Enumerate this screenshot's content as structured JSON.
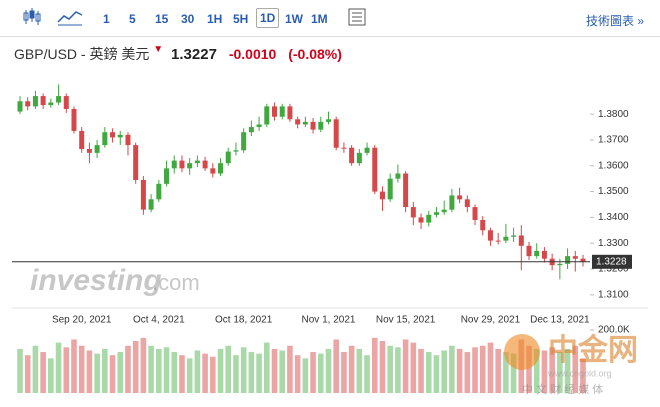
{
  "toolbar": {
    "intervals": [
      "1",
      "5",
      "15",
      "30",
      "1H",
      "5H",
      "1D",
      "1W",
      "1M"
    ],
    "active": "1D",
    "link": "技術圖表 »"
  },
  "header": {
    "symbol": "GBP/USD - 英鎊 美元",
    "price": "1.3227",
    "change": "-0.0010",
    "change_pct": "(-0.08%)"
  },
  "watermark": {
    "brand": "investing",
    "domain": ".com",
    "logo": "中金网",
    "site": "www.cngold.org",
    "slogan": "中 文 财 经 媒 体"
  },
  "chart_data": {
    "type": "candlestick",
    "categories": [
      null,
      null,
      null,
      null,
      null,
      null,
      null,
      null,
      "Sep 20, 2021",
      null,
      null,
      null,
      null,
      null,
      null,
      null,
      null,
      null,
      "Oct 4, 2021",
      null,
      null,
      null,
      null,
      null,
      null,
      null,
      null,
      null,
      null,
      "Oct 18, 2021",
      null,
      null,
      null,
      null,
      null,
      null,
      null,
      null,
      null,
      null,
      "Nov 1, 2021",
      null,
      null,
      null,
      null,
      null,
      null,
      null,
      null,
      null,
      "Nov 15, 2021",
      null,
      null,
      null,
      null,
      null,
      null,
      null,
      null,
      null,
      null,
      "Nov 29, 2021",
      null,
      null,
      null,
      null,
      null,
      null,
      null,
      null,
      "Dec 13, 2021",
      null,
      null,
      null
    ],
    "open": [
      1.381,
      1.385,
      1.383,
      1.387,
      1.3835,
      1.3845,
      1.387,
      1.382,
      1.3735,
      1.3665,
      1.365,
      1.368,
      1.373,
      1.371,
      1.372,
      1.368,
      1.3545,
      1.343,
      1.347,
      1.353,
      1.359,
      1.362,
      1.359,
      1.361,
      1.362,
      1.359,
      1.357,
      1.361,
      1.3655,
      1.366,
      1.373,
      1.375,
      1.376,
      1.383,
      1.379,
      1.383,
      1.378,
      1.376,
      1.377,
      1.374,
      1.377,
      1.378,
      1.367,
      1.367,
      1.361,
      1.365,
      1.367,
      1.35,
      1.347,
      1.355,
      1.357,
      1.344,
      1.34,
      1.338,
      1.341,
      1.342,
      1.343,
      1.3485,
      1.347,
      1.344,
      1.339,
      1.335,
      1.331,
      1.331,
      1.3325,
      1.333,
      1.329,
      1.325,
      1.327,
      1.324,
      1.3215,
      1.322,
      1.325,
      1.324
    ],
    "high": [
      1.387,
      1.3865,
      1.389,
      1.388,
      1.386,
      1.3915,
      1.388,
      1.383,
      1.375,
      1.369,
      1.37,
      1.375,
      1.3745,
      1.3735,
      1.373,
      1.369,
      1.356,
      1.349,
      1.3545,
      1.362,
      1.364,
      1.364,
      1.363,
      1.364,
      1.3635,
      1.361,
      1.363,
      1.367,
      1.369,
      1.3745,
      1.3775,
      1.379,
      1.384,
      1.3845,
      1.384,
      1.384,
      1.379,
      1.379,
      1.3785,
      1.379,
      1.381,
      1.379,
      1.369,
      1.368,
      1.3665,
      1.369,
      1.368,
      1.352,
      1.357,
      1.3605,
      1.358,
      1.346,
      1.3415,
      1.3425,
      1.344,
      1.3465,
      1.351,
      1.3515,
      1.3485,
      1.345,
      1.3405,
      1.336,
      1.334,
      1.3375,
      1.336,
      1.337,
      1.3305,
      1.33,
      1.3285,
      1.326,
      1.324,
      1.328,
      1.327,
      1.3255
    ],
    "low": [
      1.38,
      1.3815,
      1.382,
      1.382,
      1.3825,
      1.3835,
      1.3805,
      1.3725,
      1.365,
      1.361,
      1.363,
      1.367,
      1.369,
      1.368,
      1.364,
      1.353,
      1.341,
      1.342,
      1.346,
      1.352,
      1.357,
      1.3575,
      1.3565,
      1.3595,
      1.358,
      1.3555,
      1.356,
      1.36,
      1.364,
      1.365,
      1.3715,
      1.3735,
      1.375,
      1.3775,
      1.378,
      1.377,
      1.3745,
      1.375,
      1.3725,
      1.373,
      1.376,
      1.366,
      1.365,
      1.36,
      1.36,
      1.364,
      1.349,
      1.3425,
      1.346,
      1.3535,
      1.342,
      1.337,
      1.3355,
      1.3365,
      1.34,
      1.341,
      1.342,
      1.3455,
      1.342,
      1.337,
      1.333,
      1.329,
      1.3295,
      1.33,
      1.3305,
      1.3195,
      1.3235,
      1.324,
      1.3225,
      1.3195,
      1.316,
      1.32,
      1.319,
      1.321
    ],
    "close": [
      1.385,
      1.383,
      1.387,
      1.3835,
      1.3845,
      1.387,
      1.382,
      1.3735,
      1.3665,
      1.365,
      1.368,
      1.373,
      1.371,
      1.372,
      1.368,
      1.3545,
      1.343,
      1.347,
      1.353,
      1.359,
      1.362,
      1.359,
      1.361,
      1.362,
      1.359,
      1.357,
      1.361,
      1.3655,
      1.366,
      1.373,
      1.375,
      1.376,
      1.383,
      1.379,
      1.383,
      1.378,
      1.376,
      1.377,
      1.374,
      1.377,
      1.378,
      1.367,
      1.367,
      1.361,
      1.365,
      1.367,
      1.35,
      1.347,
      1.355,
      1.357,
      1.344,
      1.34,
      1.338,
      1.341,
      1.342,
      1.343,
      1.3485,
      1.347,
      1.344,
      1.339,
      1.335,
      1.331,
      1.331,
      1.3325,
      1.333,
      1.329,
      1.325,
      1.327,
      1.324,
      1.3215,
      1.322,
      1.325,
      1.324,
      1.3228
    ],
    "volume": [
      140000,
      120000,
      150000,
      130000,
      110000,
      160000,
      145000,
      170000,
      150000,
      135000,
      125000,
      140000,
      120000,
      130000,
      150000,
      165000,
      175000,
      150000,
      140000,
      145000,
      130000,
      120000,
      110000,
      135000,
      125000,
      115000,
      140000,
      150000,
      120000,
      145000,
      130000,
      125000,
      160000,
      140000,
      135000,
      150000,
      120000,
      110000,
      130000,
      125000,
      140000,
      170000,
      130000,
      150000,
      140000,
      120000,
      175000,
      165000,
      150000,
      145000,
      170000,
      160000,
      140000,
      130000,
      120000,
      135000,
      150000,
      140000,
      130000,
      145000,
      150000,
      160000,
      140000,
      130000,
      125000,
      170000,
      150000,
      140000,
      135000,
      145000,
      130000,
      140000,
      150000,
      110000
    ],
    "up_color": "#3fa83f",
    "down_color": "#d6474a",
    "volume_up_color": "#a9d9a9",
    "volume_down_color": "#eba5a5",
    "ylim": [
      1.308,
      1.394
    ],
    "yticks": [
      {
        "value": 1.31,
        "label": "1.3100"
      },
      {
        "value": 1.32,
        "label": "1.3200"
      },
      {
        "value": 1.33,
        "label": "1.3300"
      },
      {
        "value": 1.34,
        "label": "1.3400"
      },
      {
        "value": 1.35,
        "label": "1.3500"
      },
      {
        "value": 1.36,
        "label": "1.3600"
      },
      {
        "value": 1.37,
        "label": "1.3700"
      },
      {
        "value": 1.38,
        "label": "1.3800"
      }
    ],
    "volume_lim": [
      0,
      200000
    ],
    "volume_ticks": [
      {
        "value": 200000,
        "label": "200.0K"
      }
    ],
    "last": {
      "value": 1.3228,
      "label": "1.3228"
    }
  }
}
